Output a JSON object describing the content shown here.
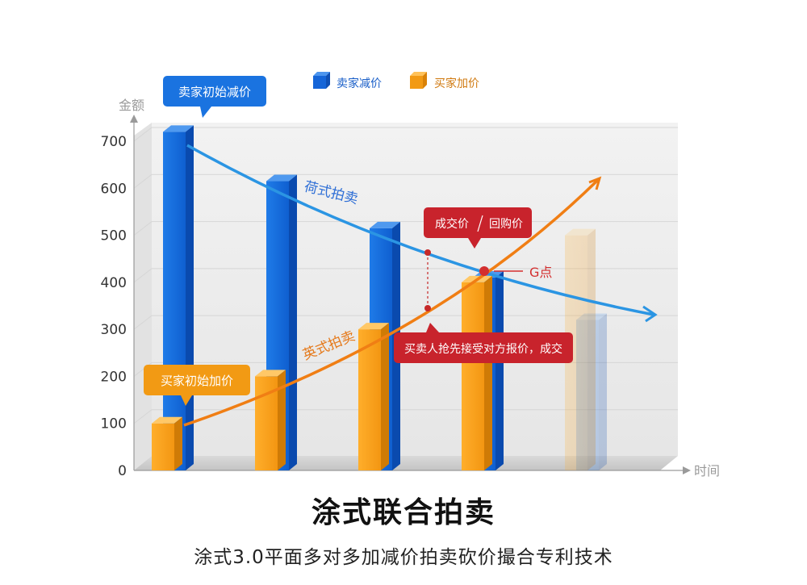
{
  "chart_data": {
    "type": "bar",
    "title": "涂式联合拍卖",
    "subtitle": "涂式3.0平面多对多加减价拍卖砍价撮合专利技术",
    "ylabel": "金额",
    "xlabel": "时间",
    "ylim": [
      0,
      700
    ],
    "yticks": [
      0,
      100,
      200,
      300,
      400,
      500,
      600,
      700
    ],
    "legend_position": "top",
    "series": [
      {
        "name": "卖家减价",
        "color": "#1565d8",
        "values": [
          720,
          615,
          515,
          410,
          320
        ]
      },
      {
        "name": "买家加价",
        "color": "#f29a14",
        "values": [
          100,
          200,
          300,
          400,
          500
        ]
      }
    ],
    "faded_group_index": 4,
    "curves": [
      {
        "label": "荷式拍卖",
        "color": "#1e8fe0"
      },
      {
        "label": "英式拍卖",
        "color": "#f07e14"
      }
    ],
    "annotations": {
      "seller_start": "卖家初始减价",
      "buyer_start": "买家初始加价",
      "deal": "成交价",
      "buyback": "回购价",
      "g_point": "G点",
      "accept": "买卖人抢先接受对方报价，成交"
    }
  }
}
